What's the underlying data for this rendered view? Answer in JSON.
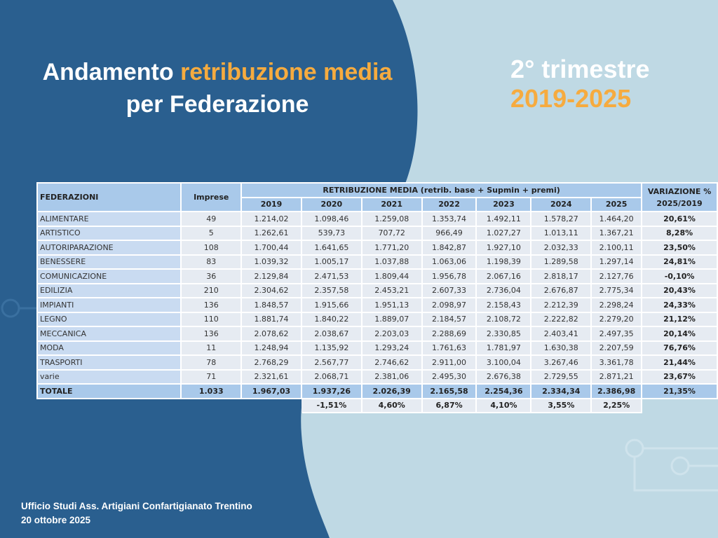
{
  "header": {
    "title_part1": "Andamento ",
    "title_accent": "retribuzione media",
    "title_line2": "per Federazione",
    "period_line1": "2° trimestre",
    "period_line2": "2019-2025"
  },
  "colors": {
    "dark_blue": "#2a5f8f",
    "light_blue": "#bfd9e4",
    "accent": "#f6ab3f",
    "header_cell": "#a9c9ea"
  },
  "table": {
    "col_federazioni": "FEDERAZIONI",
    "col_imprese": "Imprese",
    "col_group": "RETRIBUZIONE MEDIA (retrib. base + Supmin + premi)",
    "col_variazione": "VARIAZIONE % 2025/2019",
    "years": [
      "2019",
      "2020",
      "2021",
      "2022",
      "2023",
      "2024",
      "2025"
    ],
    "rows": [
      {
        "name": "ALIMENTARE",
        "imprese": "49",
        "values": [
          "1.214,02",
          "1.098,46",
          "1.259,08",
          "1.353,74",
          "1.492,11",
          "1.578,27",
          "1.464,20"
        ],
        "var": "20,61%"
      },
      {
        "name": "ARTISTICO",
        "imprese": "5",
        "values": [
          "1.262,61",
          "539,73",
          "707,72",
          "966,49",
          "1.027,27",
          "1.013,11",
          "1.367,21"
        ],
        "var": "8,28%"
      },
      {
        "name": "AUTORIPARAZIONE",
        "imprese": "108",
        "values": [
          "1.700,44",
          "1.641,65",
          "1.771,20",
          "1.842,87",
          "1.927,10",
          "2.032,33",
          "2.100,11"
        ],
        "var": "23,50%"
      },
      {
        "name": "BENESSERE",
        "imprese": "83",
        "values": [
          "1.039,32",
          "1.005,17",
          "1.037,88",
          "1.063,06",
          "1.198,39",
          "1.289,58",
          "1.297,14"
        ],
        "var": "24,81%"
      },
      {
        "name": "COMUNICAZIONE",
        "imprese": "36",
        "values": [
          "2.129,84",
          "2.471,53",
          "1.809,44",
          "1.956,78",
          "2.067,16",
          "2.818,17",
          "2.127,76"
        ],
        "var": "-0,10%"
      },
      {
        "name": "EDILIZIA",
        "imprese": "210",
        "values": [
          "2.304,62",
          "2.357,58",
          "2.453,21",
          "2.607,33",
          "2.736,04",
          "2.676,87",
          "2.775,34"
        ],
        "var": "20,43%"
      },
      {
        "name": "IMPIANTI",
        "imprese": "136",
        "values": [
          "1.848,57",
          "1.915,66",
          "1.951,13",
          "2.098,97",
          "2.158,43",
          "2.212,39",
          "2.298,24"
        ],
        "var": "24,33%"
      },
      {
        "name": "LEGNO",
        "imprese": "110",
        "values": [
          "1.881,74",
          "1.840,22",
          "1.889,07",
          "2.184,57",
          "2.108,72",
          "2.222,82",
          "2.279,20"
        ],
        "var": "21,12%"
      },
      {
        "name": "MECCANICA",
        "imprese": "136",
        "values": [
          "2.078,62",
          "2.038,67",
          "2.203,03",
          "2.288,69",
          "2.330,85",
          "2.403,41",
          "2.497,35"
        ],
        "var": "20,14%"
      },
      {
        "name": "MODA",
        "imprese": "11",
        "values": [
          "1.248,94",
          "1.135,92",
          "1.293,24",
          "1.761,63",
          "1.781,97",
          "1.630,38",
          "2.207,59"
        ],
        "var": "76,76%"
      },
      {
        "name": "TRASPORTI",
        "imprese": "78",
        "values": [
          "2.768,29",
          "2.567,77",
          "2.746,62",
          "2.911,00",
          "3.100,04",
          "3.267,46",
          "3.361,78"
        ],
        "var": "21,44%"
      },
      {
        "name": "varie",
        "imprese": "71",
        "values": [
          "2.321,61",
          "2.068,71",
          "2.381,06",
          "2.495,30",
          "2.676,38",
          "2.729,55",
          "2.871,21"
        ],
        "var": "23,67%"
      }
    ],
    "total": {
      "name": "TOTALE",
      "imprese": "1.033",
      "values": [
        "1.967,03",
        "1.937,26",
        "2.026,39",
        "2.165,58",
        "2.254,36",
        "2.334,34",
        "2.386,98"
      ],
      "var": "21,35%"
    },
    "yearly_change": [
      "-1,51%",
      "4,60%",
      "6,87%",
      "4,10%",
      "3,55%",
      "2,25%"
    ]
  },
  "footer": {
    "line1": "Ufficio Studi Ass. Artigiani Confartigianato Trentino",
    "line2": "20 ottobre 2025"
  }
}
